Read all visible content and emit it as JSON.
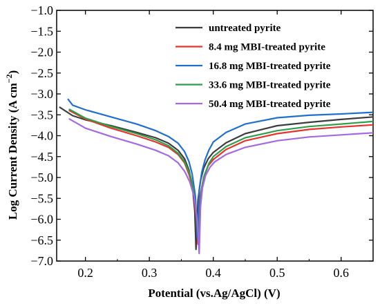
{
  "chart_data": {
    "type": "line",
    "xlabel": "Potential (vs.Ag/AgCl) (V)",
    "ylabel_main": "Log Current Density (A cm",
    "ylabel_sup": "−2",
    "ylabel_close": ")",
    "xlim": [
      0.155,
      0.65
    ],
    "ylim": [
      -7.0,
      -1.0
    ],
    "xticks": [
      0.2,
      0.3,
      0.4,
      0.5,
      0.6
    ],
    "xtick_labels": [
      "0.2",
      "0.3",
      "0.4",
      "0.5",
      "0.6"
    ],
    "yticks": [
      -1.0,
      -1.5,
      -2.0,
      -2.5,
      -3.0,
      -3.5,
      -4.0,
      -4.5,
      -5.0,
      -5.5,
      -6.0,
      -6.5,
      -7.0
    ],
    "ytick_labels": [
      "−1.0",
      "−1.5",
      "−2.0",
      "−2.5",
      "−3.0",
      "−3.5",
      "−4.0",
      "−4.5",
      "−5.0",
      "−5.5",
      "−6.0",
      "−6.5",
      "−7.0"
    ],
    "grid": false,
    "legend_position": "top-right",
    "series": [
      {
        "name": "untreated pyrite",
        "color": "#3c3c3c",
        "x": [
          0.16,
          0.18,
          0.2,
          0.24,
          0.28,
          0.31,
          0.33,
          0.345,
          0.355,
          0.362,
          0.367,
          0.371,
          0.373,
          0.376,
          0.38,
          0.385,
          0.392,
          0.4,
          0.42,
          0.45,
          0.5,
          0.55,
          0.6,
          0.65
        ],
        "y": [
          -3.32,
          -3.52,
          -3.62,
          -3.76,
          -3.92,
          -4.05,
          -4.18,
          -4.35,
          -4.55,
          -4.82,
          -5.15,
          -5.8,
          -6.72,
          -5.55,
          -5.08,
          -4.78,
          -4.55,
          -4.4,
          -4.17,
          -3.95,
          -3.76,
          -3.68,
          -3.61,
          -3.55
        ]
      },
      {
        "name": "8.4 mg MBI-treated pyrite",
        "color": "#e8322b",
        "x": [
          0.175,
          0.2,
          0.24,
          0.28,
          0.31,
          0.33,
          0.345,
          0.355,
          0.362,
          0.368,
          0.373,
          0.376,
          0.38,
          0.385,
          0.392,
          0.4,
          0.42,
          0.45,
          0.5,
          0.55,
          0.6,
          0.65
        ],
        "y": [
          -3.4,
          -3.6,
          -3.82,
          -4.0,
          -4.15,
          -4.28,
          -4.45,
          -4.65,
          -4.92,
          -5.25,
          -5.9,
          -6.6,
          -5.4,
          -5.0,
          -4.72,
          -4.57,
          -4.33,
          -4.12,
          -3.95,
          -3.85,
          -3.79,
          -3.74
        ]
      },
      {
        "name": "16.8 mg MBI-treated pyrite",
        "color": "#1f6fd1",
        "x": [
          0.173,
          0.18,
          0.2,
          0.24,
          0.28,
          0.31,
          0.33,
          0.345,
          0.355,
          0.362,
          0.367,
          0.372,
          0.375,
          0.378,
          0.382,
          0.387,
          0.393,
          0.4,
          0.42,
          0.45,
          0.5,
          0.55,
          0.6,
          0.65
        ],
        "y": [
          -3.13,
          -3.27,
          -3.38,
          -3.55,
          -3.72,
          -3.88,
          -4.02,
          -4.18,
          -4.38,
          -4.62,
          -4.92,
          -5.45,
          -6.45,
          -5.3,
          -4.88,
          -4.58,
          -4.35,
          -4.15,
          -3.92,
          -3.72,
          -3.57,
          -3.51,
          -3.48,
          -3.44
        ]
      },
      {
        "name": "33.6 mg MBI-treated pyrite",
        "color": "#2f9e4a",
        "x": [
          0.175,
          0.2,
          0.24,
          0.28,
          0.31,
          0.33,
          0.345,
          0.355,
          0.363,
          0.369,
          0.374,
          0.377,
          0.381,
          0.386,
          0.393,
          0.4,
          0.42,
          0.45,
          0.5,
          0.55,
          0.6,
          0.65
        ],
        "y": [
          -3.37,
          -3.58,
          -3.78,
          -3.95,
          -4.1,
          -4.24,
          -4.42,
          -4.62,
          -4.9,
          -5.28,
          -5.95,
          -6.5,
          -5.35,
          -4.95,
          -4.67,
          -4.5,
          -4.26,
          -4.05,
          -3.88,
          -3.78,
          -3.72,
          -3.66
        ]
      },
      {
        "name": "50.4 mg MBI-treated pyrite",
        "color": "#a468e6",
        "x": [
          0.175,
          0.2,
          0.24,
          0.28,
          0.31,
          0.33,
          0.345,
          0.355,
          0.363,
          0.37,
          0.375,
          0.378,
          0.38,
          0.383,
          0.388,
          0.395,
          0.402,
          0.42,
          0.45,
          0.5,
          0.55,
          0.6,
          0.65
        ],
        "y": [
          -3.6,
          -3.82,
          -4.02,
          -4.2,
          -4.35,
          -4.48,
          -4.65,
          -4.85,
          -5.1,
          -5.45,
          -6.05,
          -6.82,
          -5.7,
          -5.25,
          -4.95,
          -4.75,
          -4.63,
          -4.45,
          -4.28,
          -4.12,
          -4.03,
          -3.98,
          -3.93
        ]
      }
    ]
  }
}
